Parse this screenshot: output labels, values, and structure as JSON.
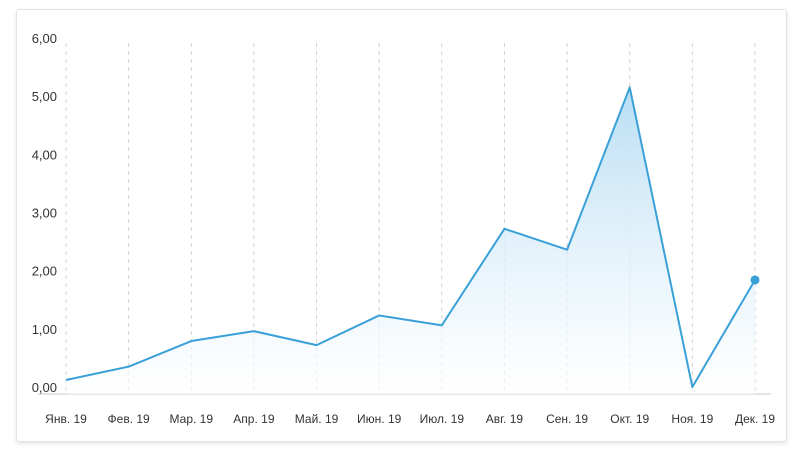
{
  "colors": {
    "line": "#3aa0d8",
    "area_top": "#b5dcf3",
    "area_bottom": "#ffffff",
    "grid": "#d0d0d0",
    "axis": "#c8c8c8",
    "text": "#333333"
  },
  "chart_data": {
    "type": "area",
    "categories": [
      "Янв. 19",
      "Фев. 19",
      "Мар. 19",
      "Апр. 19",
      "Май. 19",
      "Июн. 19",
      "Июл. 19",
      "Авг. 19",
      "Сен. 19",
      "Окт. 19",
      "Ноя. 19",
      "Дек. 19"
    ],
    "series": [
      {
        "values": [
          0.12,
          0.35,
          0.79,
          0.96,
          0.72,
          1.23,
          1.06,
          2.72,
          2.36,
          5.15,
          0.0,
          1.84
        ]
      }
    ],
    "yticks": [
      "0,00",
      "1,00",
      "2,00",
      "3,00",
      "4,00",
      "5,00",
      "6,00"
    ],
    "ylim": [
      0,
      6
    ],
    "grid": "vertical dashed",
    "marker": "last point"
  }
}
